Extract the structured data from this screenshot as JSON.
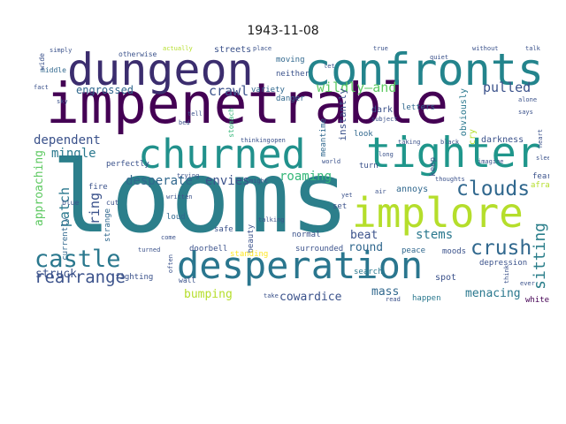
{
  "title": "1943-11-08",
  "palette": {
    "dark_purple": "#440154",
    "indigo": "#3b528b",
    "blue": "#31688e",
    "teal": "#21918c",
    "green": "#35b779",
    "lime": "#b5de2b",
    "yellow": "#fde725"
  },
  "words": {
    "looms": "looms",
    "impenetrable": "impenetrable",
    "dungeon": "dungeon",
    "confronts": "confronts",
    "churned": "churned",
    "tighter": "tighter",
    "implore": "implore",
    "desperation": "desperation",
    "castle": "castle",
    "rearrange": "rearrange",
    "clouds": "clouds",
    "crush": "crush",
    "sitting": "sitting",
    "wildly_and": "wildly—and",
    "pulled": "pulled",
    "engrossed": "engrossed",
    "crawl": "crawl",
    "dependent": "dependent",
    "mingle": "mingle",
    "desperate": "desperate",
    "envies": "envies",
    "roaming": "roaming",
    "approaching": "approaching",
    "patch": "patch",
    "ring": "ring",
    "beat": "beat",
    "round": "round",
    "stems": "stems",
    "struck": "struck",
    "bumping": "bumping",
    "cowardice": "cowardice",
    "mass": "mass",
    "menacing": "menacing",
    "streets": "streets",
    "moving": "moving",
    "danger": "danger",
    "neither": "neither",
    "variety": "variety",
    "darkness": "darkness",
    "letters": "letters",
    "obviously": "obviously",
    "instantly": "instantly",
    "meantime": "meantime",
    "dark": "dark",
    "look": "look",
    "turn": "turn",
    "keep": "keep",
    "annoys": "annoys",
    "search": "search",
    "set": "set",
    "depression": "depression",
    "spot": "spot",
    "happen": "happen",
    "peace": "peace",
    "moods": "moods",
    "white": "white",
    "fear": "fear",
    "afraid": "afraid",
    "cry": "cry",
    "perfectly": "perfectly",
    "safe": "safe",
    "loud": "loud",
    "normal": "normal",
    "beauty": "beauty",
    "surrounded": "surrounded",
    "standing": "standing",
    "doorbell": "doorbell",
    "fighting": "fighting",
    "strange": "strange",
    "currently": "currently",
    "wall": "wall",
    "blue": "blue",
    "cut": "cut",
    "fire": "fire",
    "middle": "middle",
    "wide": "wide",
    "otherwise": "otherwise",
    "simply": "simply",
    "actually": "actually",
    "place": "place",
    "true": "true",
    "talk": "talk",
    "without": "without",
    "quiet": "quiet",
    "subject": "subject",
    "says": "says",
    "alone": "alone",
    "thinking": "thinking",
    "imagine": "imagine",
    "thoughts": "thoughts",
    "long": "long",
    "black": "black",
    "taking": "taking",
    "ever": "ever",
    "think": "think",
    "read": "read",
    "take": "take",
    "stomach": "stomach",
    "fact": "fact",
    "sky": "sky",
    "bed": "bed",
    "tell": "tell",
    "written": "written",
    "trying": "trying",
    "often": "often",
    "come": "come",
    "turned": "turned",
    "might": "might",
    "talking": "talking",
    "yet": "yet",
    "air": "air",
    "sleep": "sleep",
    "heart": "heart",
    "open": "open",
    "let": "let",
    "world": "world"
  }
}
